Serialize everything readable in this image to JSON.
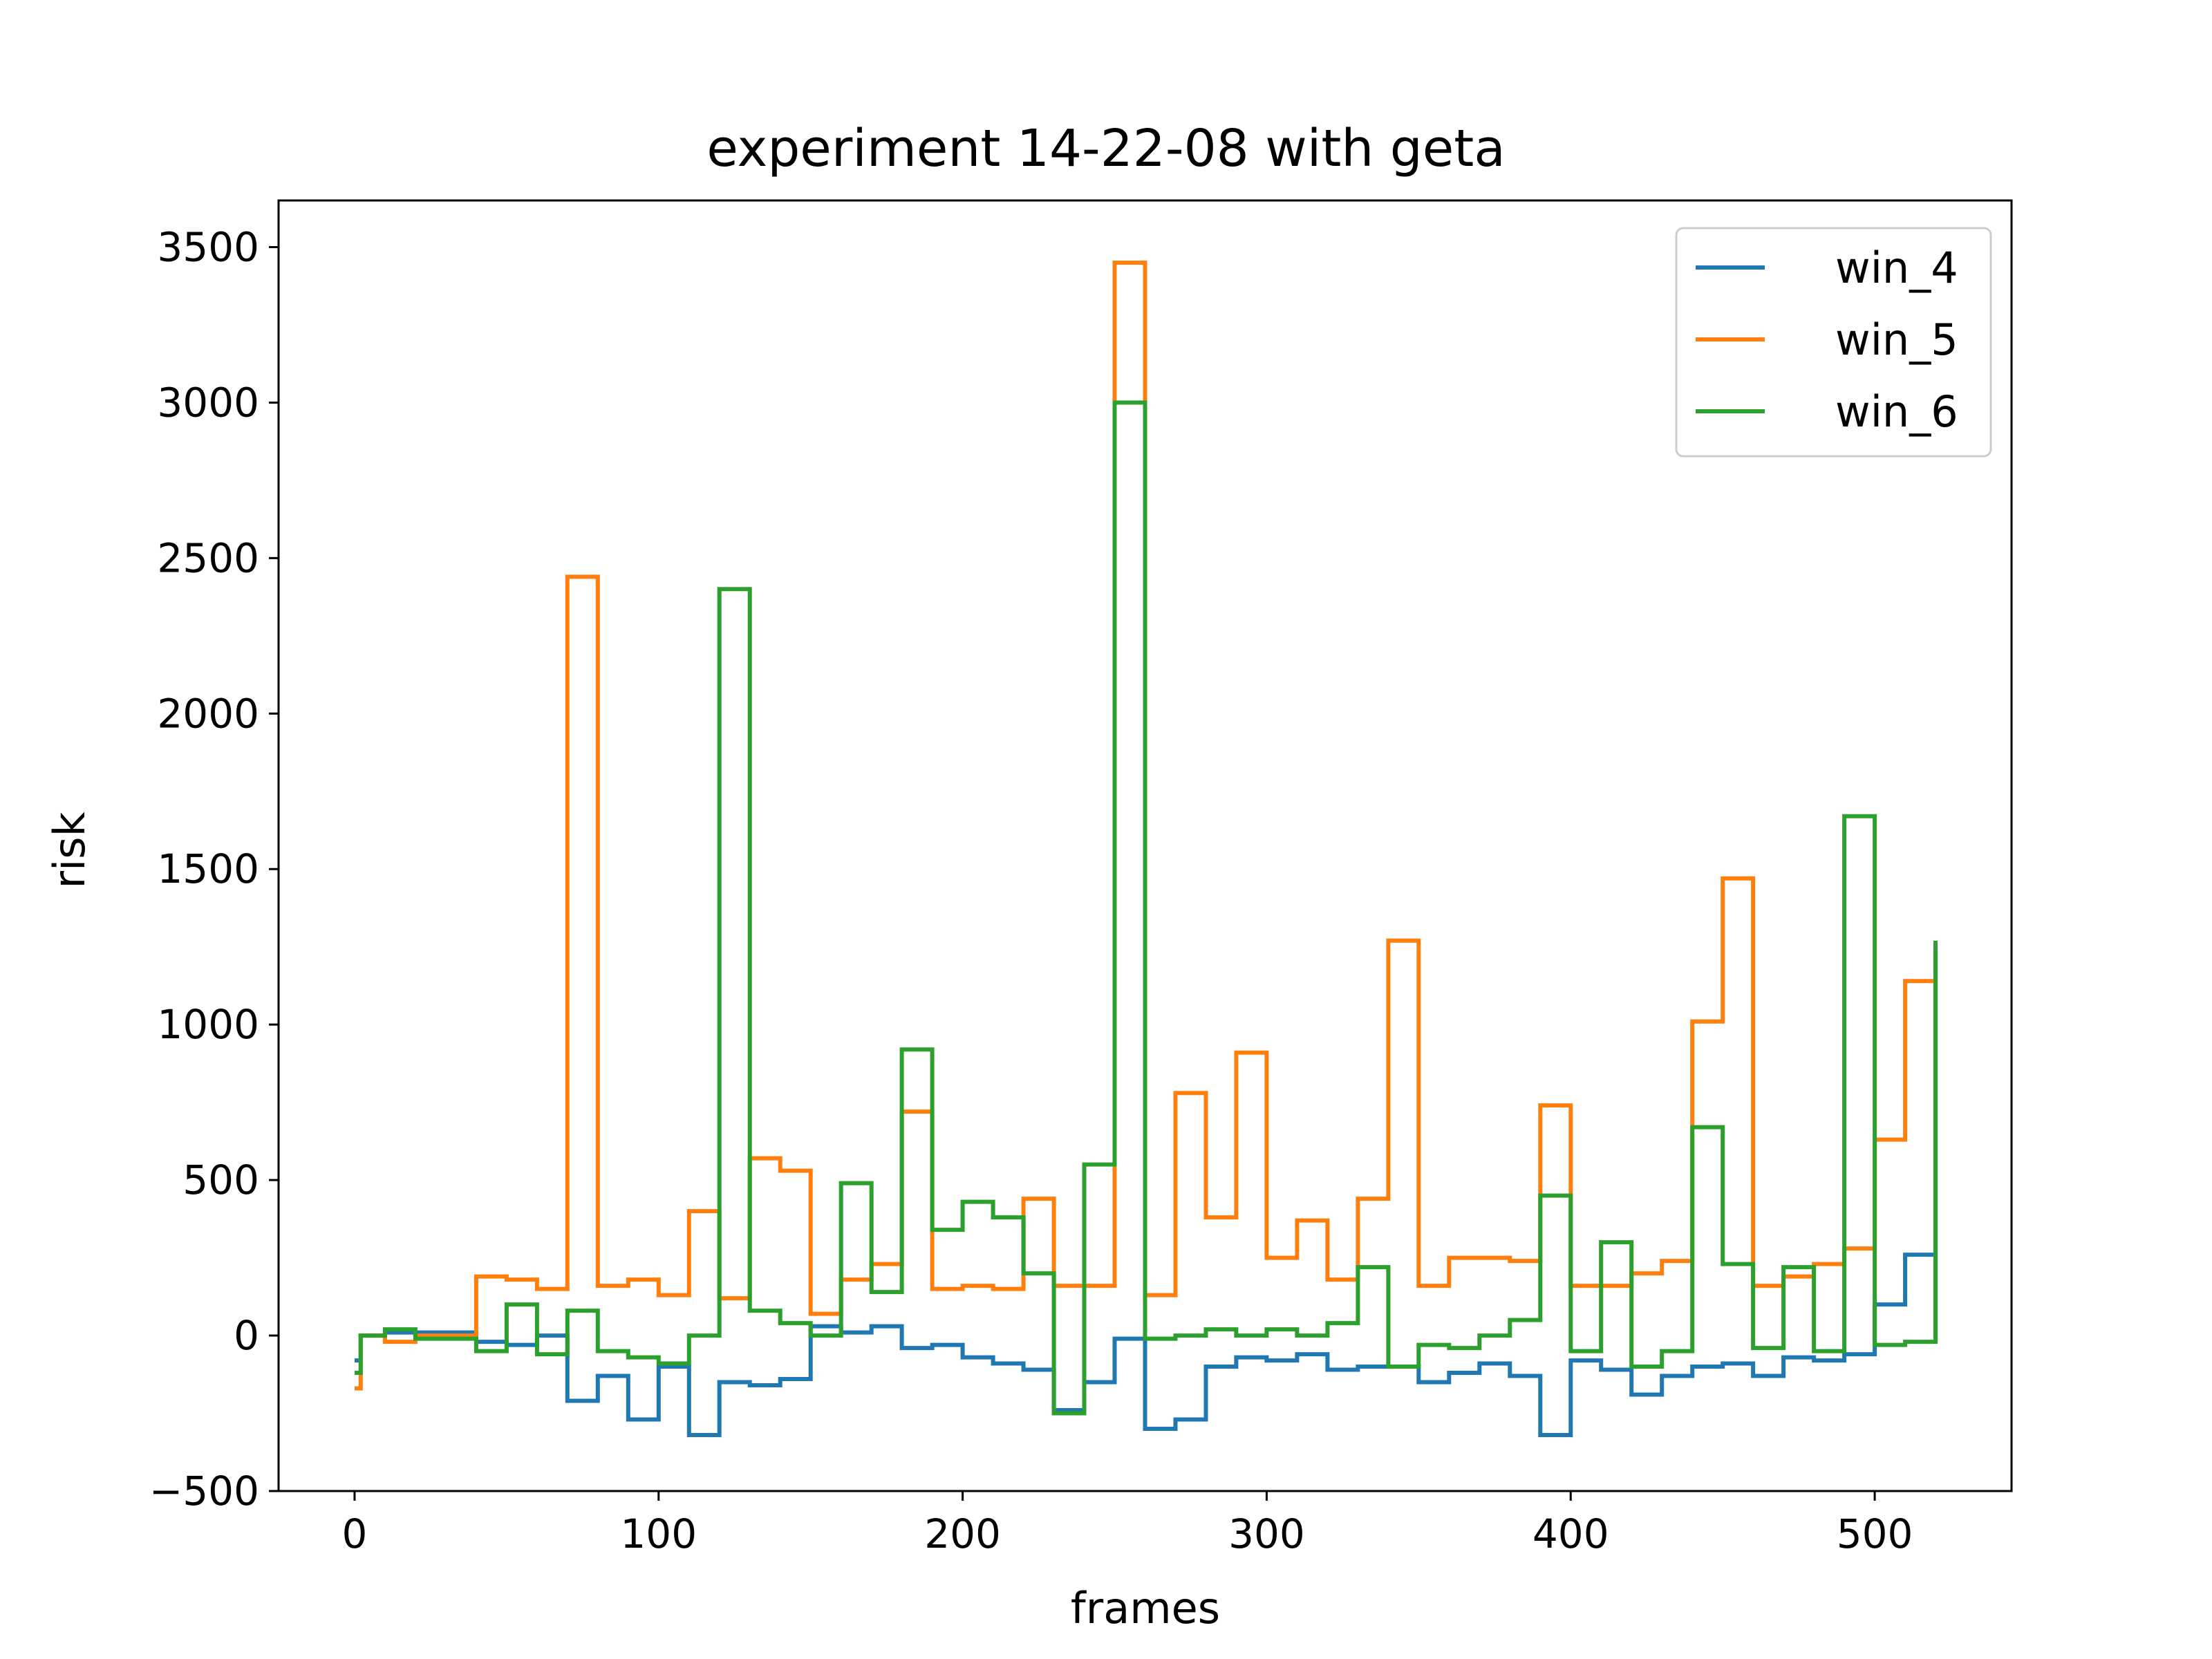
{
  "chart_data": {
    "type": "line",
    "title": "experiment 14-22-08 with geta",
    "xlabel": "frames",
    "ylabel": "risk",
    "xlim": [
      -25,
      545
    ],
    "ylim": [
      -500,
      3650
    ],
    "xticks": [
      0,
      100,
      200,
      300,
      400,
      500
    ],
    "yticks": [
      -500,
      0,
      500,
      1000,
      1500,
      2000,
      2500,
      3000,
      3500
    ],
    "xtick_labels": [
      "0",
      "100",
      "200",
      "300",
      "400",
      "500"
    ],
    "ytick_labels": [
      "−500",
      "0",
      "500",
      "1000",
      "1500",
      "2000",
      "2500",
      "3000",
      "3500"
    ],
    "grid": false,
    "legend_position": "top-right",
    "step": true,
    "series": [
      {
        "name": "win_4",
        "color": "#1f77b4",
        "x": [
          0,
          2,
          10,
          20,
          30,
          40,
          50,
          60,
          70,
          80,
          90,
          100,
          110,
          120,
          130,
          140,
          150,
          160,
          170,
          180,
          190,
          200,
          210,
          220,
          230,
          240,
          250,
          260,
          270,
          280,
          290,
          300,
          310,
          320,
          330,
          340,
          350,
          360,
          370,
          380,
          390,
          400,
          410,
          420,
          430,
          440,
          450,
          460,
          470,
          480,
          490,
          500,
          510,
          520
        ],
        "y": [
          -80,
          0,
          10,
          10,
          10,
          -20,
          -30,
          0,
          -210,
          -130,
          -270,
          -100,
          -320,
          -150,
          -160,
          -140,
          30,
          10,
          30,
          -40,
          -30,
          -70,
          -90,
          -110,
          -240,
          -150,
          -10,
          -300,
          -270,
          -100,
          -70,
          -80,
          -60,
          -110,
          -100,
          -100,
          -150,
          -120,
          -90,
          -130,
          -320,
          -80,
          -110,
          -190,
          -130,
          -100,
          -90,
          -130,
          -70,
          -80,
          -60,
          100,
          260,
          0
        ]
      },
      {
        "name": "win_5",
        "color": "#ff7f0e",
        "x": [
          0,
          2,
          10,
          20,
          30,
          40,
          50,
          60,
          70,
          80,
          90,
          100,
          110,
          120,
          130,
          140,
          150,
          160,
          170,
          180,
          190,
          200,
          210,
          220,
          230,
          240,
          250,
          260,
          270,
          280,
          290,
          300,
          310,
          320,
          330,
          340,
          350,
          360,
          370,
          380,
          390,
          400,
          410,
          420,
          430,
          440,
          450,
          460,
          470,
          480,
          490,
          500,
          510,
          520
        ],
        "y": [
          -170,
          0,
          -20,
          0,
          0,
          190,
          180,
          150,
          2440,
          160,
          180,
          130,
          400,
          120,
          570,
          530,
          70,
          180,
          230,
          720,
          150,
          160,
          150,
          440,
          160,
          160,
          3450,
          130,
          780,
          380,
          910,
          250,
          370,
          180,
          440,
          1270,
          160,
          250,
          250,
          240,
          740,
          160,
          160,
          200,
          240,
          1010,
          1470,
          160,
          190,
          230,
          280,
          630,
          1140,
          210
        ]
      },
      {
        "name": "win_6",
        "color": "#2ca02c",
        "x": [
          0,
          2,
          10,
          20,
          30,
          40,
          50,
          60,
          70,
          80,
          90,
          100,
          110,
          120,
          130,
          140,
          150,
          160,
          170,
          180,
          190,
          200,
          210,
          220,
          230,
          240,
          250,
          260,
          270,
          280,
          290,
          300,
          310,
          320,
          330,
          340,
          350,
          360,
          370,
          380,
          390,
          400,
          410,
          420,
          430,
          440,
          450,
          460,
          470,
          480,
          490,
          500,
          510,
          520
        ],
        "y": [
          -120,
          0,
          20,
          -10,
          -10,
          -50,
          100,
          -60,
          80,
          -50,
          -70,
          -90,
          0,
          2400,
          80,
          40,
          0,
          490,
          140,
          920,
          340,
          430,
          380,
          200,
          -250,
          550,
          3000,
          -10,
          0,
          20,
          0,
          20,
          0,
          40,
          220,
          -100,
          -30,
          -40,
          0,
          50,
          450,
          -50,
          300,
          -100,
          -50,
          670,
          230,
          -40,
          220,
          -50,
          1670,
          -30,
          -20,
          1270
        ]
      }
    ]
  }
}
